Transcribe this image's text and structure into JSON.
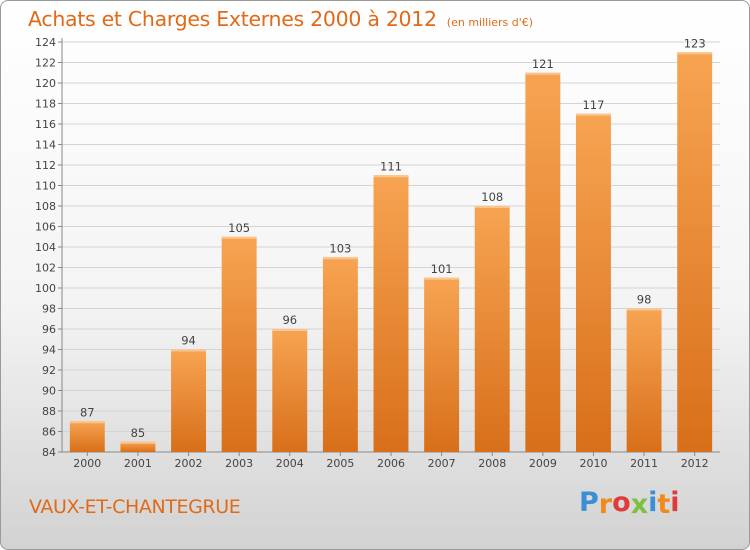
{
  "title": "Achats et Charges Externes 2000 à 2012",
  "unit": "(en milliers d'€)",
  "commune": "VAUX-ET-CHANTEGRUE",
  "logo": {
    "letters": [
      "P",
      "r",
      "o",
      "x",
      "i",
      "t",
      "i"
    ],
    "colors": [
      "#3b8fd6",
      "#f08a1a",
      "#e03a3a",
      "#7cc242",
      "#3b8fd6",
      "#f08a1a",
      "#e03a3a"
    ]
  },
  "colors": {
    "bar": "#ee8c32",
    "bar_light": "#f7a45a",
    "bar_dark": "#d9731c",
    "text": "#e06a18"
  },
  "chart_data": {
    "type": "bar",
    "categories": [
      "2000",
      "2001",
      "2002",
      "2003",
      "2004",
      "2005",
      "2006",
      "2007",
      "2008",
      "2009",
      "2010",
      "2011",
      "2012"
    ],
    "values": [
      87,
      85,
      94,
      105,
      96,
      103,
      111,
      101,
      108,
      121,
      117,
      98,
      123
    ],
    "data_labels": [
      "87",
      "85",
      "94",
      "105",
      "96",
      "103",
      "111",
      "101",
      "108",
      "121",
      "117",
      "98",
      "123"
    ],
    "yticks": [
      "84",
      "86",
      "88",
      "90",
      "92",
      "94",
      "96",
      "98",
      "100",
      "102",
      "104",
      "106",
      "108",
      "110",
      "112",
      "114",
      "116",
      "118",
      "120",
      "122",
      "124"
    ],
    "ylim": [
      84,
      124
    ],
    "grid": true,
    "title": "Achats et Charges Externes 2000 à 2012",
    "xlabel": "",
    "ylabel": ""
  }
}
